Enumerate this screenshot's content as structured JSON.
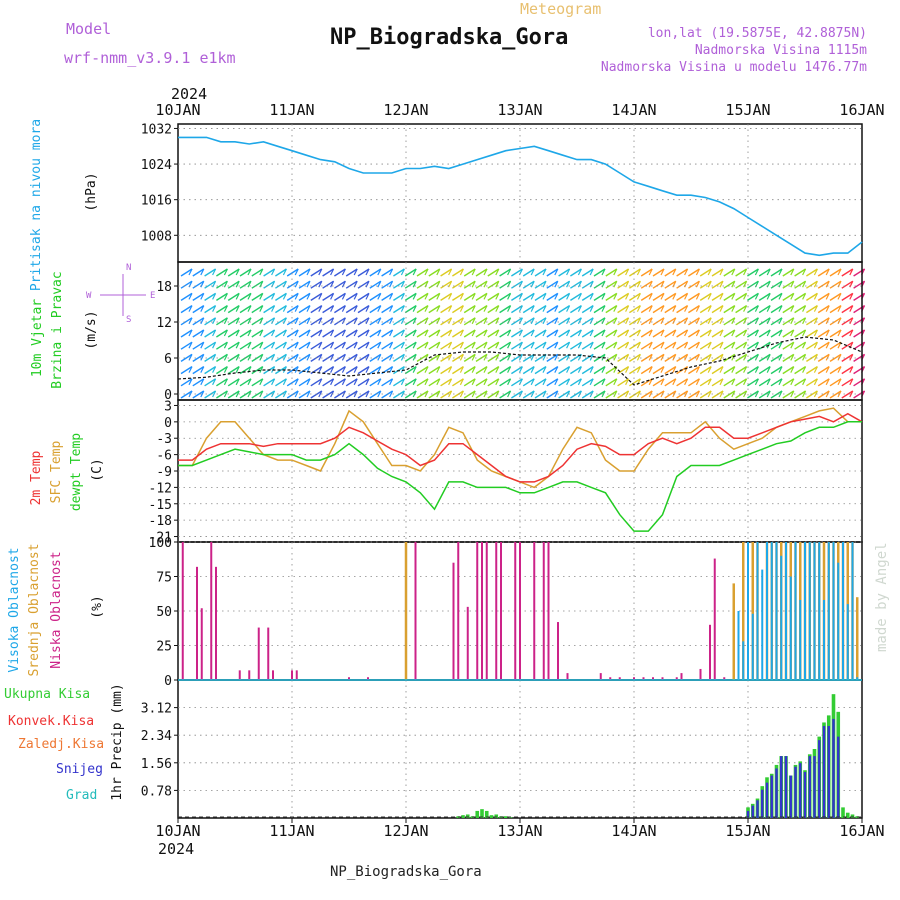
{
  "header": {
    "model_label": "Model",
    "model_name": "wrf-nmm_v3.9.1 e1km",
    "meteogram_label": "Meteogram",
    "station_title": "NP_Biogradska_Gora",
    "lonlat": "lon,lat (19.5875E, 42.8875N)",
    "elevation": "Nadmorska Visina 1115m",
    "model_elevation": "Nadmorska Visina u modelu 1476.77m",
    "footer_station": "NP_Biogradska_Gora",
    "credit": "made by Angel"
  },
  "colors": {
    "pressure": "#1ea7e8",
    "temp2m": "#ee3333",
    "sfc_temp": "#d9a030",
    "dewpt": "#22cc22",
    "cloud_high": "#1ea7e8",
    "cloud_mid": "#d9a030",
    "cloud_low": "#cc2288",
    "rain_total": "#33cc33",
    "snow": "#3333cc",
    "grad": "#22bbbb",
    "accent_purple": "#b060d8",
    "wind_label": "#22cc22",
    "grid": "#888888"
  },
  "chart_data": [
    {
      "type": "line",
      "panel": "pressure",
      "ylabel_1": "Pritisak na nivou mora",
      "ylabel_2": "(hPa)",
      "yticks": [
        1032,
        1024,
        1016,
        1008
      ],
      "ylim": [
        1002,
        1033
      ],
      "xlim": [
        0,
        144
      ],
      "x_axis_year": "2024",
      "x_tick_labels": [
        "10JAN",
        "11JAN",
        "12JAN",
        "13JAN",
        "14JAN",
        "15JAN",
        "16JAN"
      ],
      "x_tick_hours": [
        0,
        24,
        48,
        72,
        96,
        120,
        144
      ],
      "grid": true,
      "series": [
        {
          "key": "pressure",
          "x": [
            0,
            3,
            6,
            9,
            12,
            15,
            18,
            21,
            24,
            27,
            30,
            33,
            36,
            39,
            42,
            45,
            48,
            51,
            54,
            57,
            60,
            63,
            66,
            69,
            72,
            75,
            78,
            81,
            84,
            87,
            90,
            93,
            96,
            99,
            102,
            105,
            108,
            111,
            114,
            117,
            120,
            123,
            126,
            129,
            132,
            135,
            138,
            141,
            144
          ],
          "values": [
            1030,
            1030,
            1030,
            1029,
            1029,
            1028.5,
            1029,
            1028,
            1027,
            1026,
            1025,
            1024.5,
            1023,
            1022,
            1022,
            1022,
            1023,
            1023,
            1023.5,
            1023,
            1024,
            1025,
            1026,
            1027,
            1027.5,
            1028,
            1027,
            1026,
            1025,
            1025,
            1024,
            1022,
            1020,
            1019,
            1018,
            1017,
            1017,
            1016.5,
            1015.5,
            1014,
            1012,
            1010,
            1008,
            1006,
            1004,
            1003.5,
            1004,
            1004,
            1006.5
          ]
        }
      ]
    },
    {
      "type": "line",
      "panel": "wind",
      "ylabel_1": "10m Vjetar",
      "ylabel_2": "Brzina i Pravac",
      "ylabel_3": "(m/s)",
      "compass": {
        "n": "N",
        "s": "S",
        "e": "E",
        "w": "W"
      },
      "yticks": [
        0,
        6,
        12,
        18
      ],
      "ylim": [
        -1,
        22
      ],
      "series": [
        {
          "key": "wind_speed",
          "x": [
            0,
            6,
            12,
            18,
            24,
            30,
            36,
            42,
            48,
            54,
            60,
            66,
            72,
            78,
            84,
            90,
            96,
            102,
            108,
            114,
            120,
            126,
            132,
            138,
            144
          ],
          "values": [
            2.5,
            2.8,
            3.5,
            4,
            4,
            3.5,
            3,
            3.5,
            4,
            6.5,
            7,
            7,
            6.5,
            6.5,
            6.5,
            6,
            1.5,
            3,
            4.5,
            5.5,
            7,
            8.5,
            9.5,
            9,
            7
          ]
        }
      ]
    },
    {
      "type": "line",
      "panel": "temperature",
      "ylabel_1": "2m Temp",
      "ylabel_2": "SFC Temp",
      "ylabel_3": "dewpt Temp",
      "ylabel_4": "(C)",
      "yticks": [
        3,
        0,
        -3,
        -6,
        -9,
        -12,
        -15,
        -18,
        -21
      ],
      "ylim": [
        -22,
        4
      ],
      "series": [
        {
          "key": "temp2m",
          "x": [
            0,
            3,
            6,
            9,
            12,
            15,
            18,
            21,
            24,
            27,
            30,
            33,
            36,
            39,
            42,
            45,
            48,
            51,
            54,
            57,
            60,
            63,
            66,
            69,
            72,
            75,
            78,
            81,
            84,
            87,
            90,
            93,
            96,
            99,
            102,
            105,
            108,
            111,
            114,
            117,
            120,
            123,
            126,
            129,
            132,
            135,
            138,
            141,
            144
          ],
          "values": [
            -7,
            -7,
            -5,
            -4,
            -4,
            -4,
            -4.5,
            -4,
            -4,
            -4,
            -4,
            -3,
            -1,
            -2,
            -3.5,
            -5,
            -6,
            -8,
            -7,
            -4,
            -4,
            -6,
            -8,
            -10,
            -11,
            -11,
            -10,
            -8,
            -5,
            -4,
            -4.5,
            -6,
            -6,
            -4,
            -3,
            -4,
            -3,
            -1,
            -1,
            -3,
            -3,
            -2,
            -1,
            0,
            0.5,
            1,
            0,
            1.5,
            0
          ]
        },
        {
          "key": "sfc_temp",
          "x": [
            0,
            3,
            6,
            9,
            12,
            15,
            18,
            21,
            24,
            27,
            30,
            33,
            36,
            39,
            42,
            45,
            48,
            51,
            54,
            57,
            60,
            63,
            66,
            69,
            72,
            75,
            78,
            81,
            84,
            87,
            90,
            93,
            96,
            99,
            102,
            105,
            108,
            111,
            114,
            117,
            120,
            123,
            126,
            129,
            132,
            135,
            138,
            141,
            144
          ],
          "values": [
            -8,
            -8,
            -3,
            0,
            0,
            -3,
            -6,
            -7,
            -7,
            -8,
            -9,
            -4,
            2,
            0,
            -4,
            -8,
            -8,
            -9,
            -6,
            -1,
            -2,
            -7,
            -9,
            -10,
            -11,
            -12,
            -10,
            -5,
            -1,
            -2,
            -7,
            -9,
            -9,
            -5,
            -2,
            -2,
            -2,
            0,
            -3,
            -5,
            -4,
            -3,
            -1,
            0,
            1,
            2,
            2.5,
            0,
            0
          ]
        },
        {
          "key": "dewpt",
          "x": [
            0,
            3,
            6,
            9,
            12,
            15,
            18,
            21,
            24,
            27,
            30,
            33,
            36,
            39,
            42,
            45,
            48,
            51,
            54,
            57,
            60,
            63,
            66,
            69,
            72,
            75,
            78,
            81,
            84,
            87,
            90,
            93,
            96,
            99,
            102,
            105,
            108,
            111,
            114,
            117,
            120,
            123,
            126,
            129,
            132,
            135,
            138,
            141,
            144
          ],
          "values": [
            -8,
            -8,
            -7,
            -6,
            -5,
            -5.5,
            -6,
            -6,
            -6,
            -7,
            -7,
            -6,
            -4,
            -6,
            -8.5,
            -10,
            -11,
            -13,
            -16,
            -11,
            -11,
            -12,
            -12,
            -12,
            -13,
            -13,
            -12,
            -11,
            -11,
            -12,
            -13,
            -17,
            -20,
            -20,
            -17,
            -10,
            -8,
            -8,
            -8,
            -7,
            -6,
            -5,
            -4,
            -3.5,
            -2,
            -1,
            -1,
            0,
            0
          ]
        }
      ]
    },
    {
      "type": "bar",
      "panel": "cloud",
      "ylabel_1": "Visoka Oblacnost",
      "ylabel_2": "Srednja Oblacnost",
      "ylabel_3": "Niska Oblacnost",
      "ylabel_4": "(%)",
      "yticks": [
        100,
        75,
        50,
        25,
        0
      ],
      "ylim": [
        0,
        100
      ],
      "series": [
        {
          "key": "cloud_low",
          "x": [
            1,
            4,
            5,
            7,
            8,
            13,
            15,
            17,
            19,
            20,
            24,
            25,
            36,
            40,
            50,
            58,
            59,
            61,
            63,
            64,
            65,
            67,
            68,
            71,
            72,
            75,
            77,
            78,
            80,
            82,
            89,
            91,
            93,
            96,
            98,
            100,
            102,
            105,
            106,
            110,
            112,
            113,
            115,
            117
          ],
          "values": [
            100,
            82,
            52,
            100,
            82,
            7,
            7,
            38,
            38,
            7,
            7,
            7,
            2,
            2,
            100,
            85,
            100,
            53,
            100,
            100,
            100,
            100,
            100,
            100,
            100,
            100,
            100,
            100,
            42,
            5,
            5,
            2,
            2,
            2,
            2,
            2,
            2,
            2,
            5,
            8,
            40,
            88,
            2,
            2
          ]
        },
        {
          "key": "cloud_mid",
          "x": [
            48,
            117,
            119,
            121,
            122,
            124,
            125,
            126,
            127,
            128,
            129,
            130,
            131,
            132,
            133,
            134,
            135,
            136,
            137,
            138,
            139,
            140,
            141,
            142,
            143
          ],
          "values": [
            100,
            70,
            100,
            100,
            100,
            100,
            100,
            100,
            100,
            100,
            100,
            100,
            100,
            100,
            100,
            100,
            100,
            100,
            100,
            100,
            100,
            100,
            100,
            100,
            60
          ]
        },
        {
          "key": "cloud_high",
          "x": [
            118,
            119,
            120,
            121,
            122,
            123,
            124,
            125,
            126,
            127,
            128,
            129,
            130,
            131,
            132,
            133,
            134,
            135,
            136,
            137,
            138,
            139,
            140,
            141,
            142,
            143
          ],
          "values": [
            50,
            28,
            100,
            48,
            100,
            80,
            100,
            100,
            100,
            90,
            100,
            75,
            100,
            58,
            100,
            100,
            100,
            100,
            58,
            100,
            100,
            85,
            100,
            55,
            100,
            2
          ]
        }
      ]
    },
    {
      "type": "bar",
      "panel": "precip",
      "ylabel_1": "1hr Precip (mm)",
      "legend": [
        "Ukupna Kisa",
        "Konvek.Kisa",
        "Zaledj.Kisa",
        "Snijeg",
        "Grad"
      ],
      "yticks": [
        3.12,
        2.34,
        1.56,
        0.78
      ],
      "ylim": [
        0,
        3.9
      ],
      "series": [
        {
          "key": "precip_total",
          "x": [
            59,
            60,
            61,
            62,
            63,
            64,
            65,
            66,
            67,
            68,
            69,
            70,
            120,
            121,
            122,
            123,
            124,
            125,
            126,
            127,
            128,
            129,
            130,
            131,
            132,
            133,
            134,
            135,
            136,
            137,
            138,
            139,
            140,
            141,
            142,
            143
          ],
          "values": [
            0.05,
            0.08,
            0.1,
            0.05,
            0.2,
            0.25,
            0.2,
            0.08,
            0.1,
            0.05,
            0.05,
            0.02,
            0.3,
            0.4,
            0.55,
            0.9,
            1.15,
            1.25,
            1.5,
            1.75,
            1.75,
            1.2,
            1.5,
            1.6,
            1.35,
            1.8,
            1.95,
            2.3,
            2.7,
            2.9,
            3.5,
            3.0,
            0.3,
            0.15,
            0.1,
            0.05
          ]
        },
        {
          "key": "snow",
          "x": [
            120,
            121,
            122,
            123,
            124,
            125,
            126,
            127,
            128,
            129,
            130,
            131,
            132,
            133,
            134,
            135,
            136,
            137,
            138,
            139
          ],
          "values": [
            0.2,
            0.35,
            0.5,
            0.8,
            1.0,
            1.2,
            1.4,
            1.75,
            1.75,
            1.2,
            1.45,
            1.55,
            1.3,
            1.75,
            1.75,
            2.2,
            2.6,
            2.6,
            2.8,
            2.3
          ]
        }
      ]
    }
  ]
}
